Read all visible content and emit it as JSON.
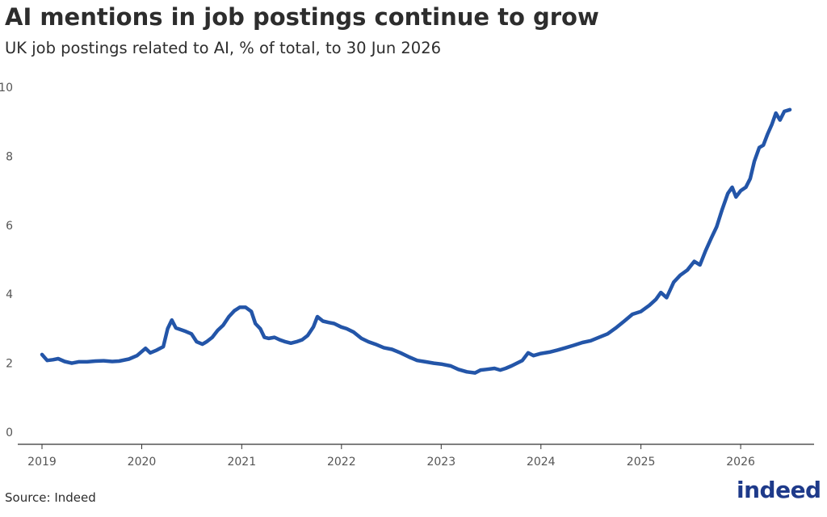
{
  "header": {
    "title": "AI mentions in job postings continue to grow",
    "subtitle": "UK job postings related to AI, % of total, to 30 Jun 2026"
  },
  "footer": {
    "source": "Source: Indeed",
    "logo_text": "indeed"
  },
  "colors": {
    "line": "#2355A8",
    "axis": "#333333",
    "text": "#2d2d2d",
    "logo": "#1e3a8a"
  },
  "chart_data": {
    "type": "line",
    "title": "AI mentions in job postings continue to grow",
    "subtitle": "UK job postings related to AI, % of total, to 30 Jun 2026",
    "xlabel": "",
    "ylabel": "",
    "x_ticks": [
      "2019",
      "2020",
      "2021",
      "2022",
      "2023",
      "2024",
      "2025",
      "2026"
    ],
    "y_ticks": [
      0,
      2,
      4,
      6,
      8,
      10
    ],
    "ylim": [
      0,
      10
    ],
    "xlim": [
      "2019-01-01",
      "2026-06-30"
    ],
    "grid": false,
    "legend": "none",
    "series": [
      {
        "color": "#2355A8",
        "points": [
          [
            "2019-01-01",
            2.25
          ],
          [
            "2019-01-20",
            2.08
          ],
          [
            "2019-02-10",
            2.1
          ],
          [
            "2019-03-01",
            2.13
          ],
          [
            "2019-03-25",
            2.05
          ],
          [
            "2019-04-20",
            2.0
          ],
          [
            "2019-05-15",
            2.04
          ],
          [
            "2019-06-15",
            2.04
          ],
          [
            "2019-07-15",
            2.06
          ],
          [
            "2019-08-15",
            2.07
          ],
          [
            "2019-09-15",
            2.05
          ],
          [
            "2019-10-10",
            2.06
          ],
          [
            "2019-11-15",
            2.12
          ],
          [
            "2019-12-15",
            2.22
          ],
          [
            "2020-01-15",
            2.43
          ],
          [
            "2020-02-01",
            2.3
          ],
          [
            "2020-02-25",
            2.38
          ],
          [
            "2020-03-20",
            2.48
          ],
          [
            "2020-04-05",
            3.0
          ],
          [
            "2020-04-20",
            3.25
          ],
          [
            "2020-05-05",
            3.02
          ],
          [
            "2020-05-20",
            2.98
          ],
          [
            "2020-06-10",
            2.92
          ],
          [
            "2020-07-01",
            2.85
          ],
          [
            "2020-07-20",
            2.62
          ],
          [
            "2020-08-10",
            2.55
          ],
          [
            "2020-08-25",
            2.62
          ],
          [
            "2020-09-15",
            2.75
          ],
          [
            "2020-10-05",
            2.95
          ],
          [
            "2020-10-25",
            3.1
          ],
          [
            "2020-11-15",
            3.35
          ],
          [
            "2020-12-05",
            3.52
          ],
          [
            "2020-12-25",
            3.62
          ],
          [
            "2021-01-15",
            3.62
          ],
          [
            "2021-02-05",
            3.5
          ],
          [
            "2021-02-20",
            3.15
          ],
          [
            "2021-03-10",
            3.0
          ],
          [
            "2021-03-25",
            2.75
          ],
          [
            "2021-04-10",
            2.72
          ],
          [
            "2021-05-01",
            2.75
          ],
          [
            "2021-05-20",
            2.68
          ],
          [
            "2021-06-10",
            2.62
          ],
          [
            "2021-06-30",
            2.58
          ],
          [
            "2021-07-20",
            2.62
          ],
          [
            "2021-08-10",
            2.68
          ],
          [
            "2021-08-30",
            2.8
          ],
          [
            "2021-09-20",
            3.05
          ],
          [
            "2021-10-05",
            3.35
          ],
          [
            "2021-10-25",
            3.22
          ],
          [
            "2021-11-15",
            3.18
          ],
          [
            "2021-12-05",
            3.15
          ],
          [
            "2021-12-31",
            3.05
          ],
          [
            "2022-01-20",
            3.0
          ],
          [
            "2022-02-15",
            2.9
          ],
          [
            "2022-03-15",
            2.72
          ],
          [
            "2022-04-10",
            2.62
          ],
          [
            "2022-05-05",
            2.55
          ],
          [
            "2022-06-05",
            2.45
          ],
          [
            "2022-07-05",
            2.4
          ],
          [
            "2022-08-05",
            2.3
          ],
          [
            "2022-09-05",
            2.18
          ],
          [
            "2022-10-05",
            2.08
          ],
          [
            "2022-11-05",
            2.04
          ],
          [
            "2022-12-05",
            2.0
          ],
          [
            "2023-01-05",
            1.97
          ],
          [
            "2023-02-05",
            1.92
          ],
          [
            "2023-03-05",
            1.82
          ],
          [
            "2023-04-05",
            1.75
          ],
          [
            "2023-05-05",
            1.72
          ],
          [
            "2023-05-25",
            1.8
          ],
          [
            "2023-06-15",
            1.82
          ],
          [
            "2023-07-15",
            1.85
          ],
          [
            "2023-08-05",
            1.8
          ],
          [
            "2023-08-25",
            1.85
          ],
          [
            "2023-09-15",
            1.92
          ],
          [
            "2023-10-05",
            2.0
          ],
          [
            "2023-10-25",
            2.08
          ],
          [
            "2023-11-15",
            2.3
          ],
          [
            "2023-12-05",
            2.22
          ],
          [
            "2024-01-01",
            2.28
          ],
          [
            "2024-02-01",
            2.32
          ],
          [
            "2024-03-01",
            2.38
          ],
          [
            "2024-04-01",
            2.45
          ],
          [
            "2024-05-01",
            2.52
          ],
          [
            "2024-06-01",
            2.6
          ],
          [
            "2024-07-01",
            2.65
          ],
          [
            "2024-08-01",
            2.75
          ],
          [
            "2024-09-01",
            2.85
          ],
          [
            "2024-10-01",
            3.02
          ],
          [
            "2024-11-01",
            3.22
          ],
          [
            "2024-12-01",
            3.42
          ],
          [
            "2025-01-01",
            3.5
          ],
          [
            "2025-02-01",
            3.68
          ],
          [
            "2025-02-25",
            3.85
          ],
          [
            "2025-03-15",
            4.05
          ],
          [
            "2025-04-05",
            3.9
          ],
          [
            "2025-05-01",
            4.35
          ],
          [
            "2025-05-25",
            4.55
          ],
          [
            "2025-06-20",
            4.7
          ],
          [
            "2025-07-15",
            4.95
          ],
          [
            "2025-08-05",
            4.85
          ],
          [
            "2025-08-25",
            5.25
          ],
          [
            "2025-09-15",
            5.62
          ],
          [
            "2025-10-05",
            5.95
          ],
          [
            "2025-10-25",
            6.45
          ],
          [
            "2025-11-15",
            6.92
          ],
          [
            "2025-12-01",
            7.1
          ],
          [
            "2025-12-15",
            6.82
          ],
          [
            "2026-01-01",
            7.0
          ],
          [
            "2026-01-20",
            7.1
          ],
          [
            "2026-02-05",
            7.35
          ],
          [
            "2026-02-20",
            7.85
          ],
          [
            "2026-03-10",
            8.25
          ],
          [
            "2026-03-25",
            8.32
          ],
          [
            "2026-04-10",
            8.65
          ],
          [
            "2026-04-25",
            8.92
          ],
          [
            "2026-05-10",
            9.25
          ],
          [
            "2026-05-25",
            9.05
          ],
          [
            "2026-06-10",
            9.3
          ],
          [
            "2026-06-30",
            9.35
          ]
        ]
      }
    ]
  }
}
